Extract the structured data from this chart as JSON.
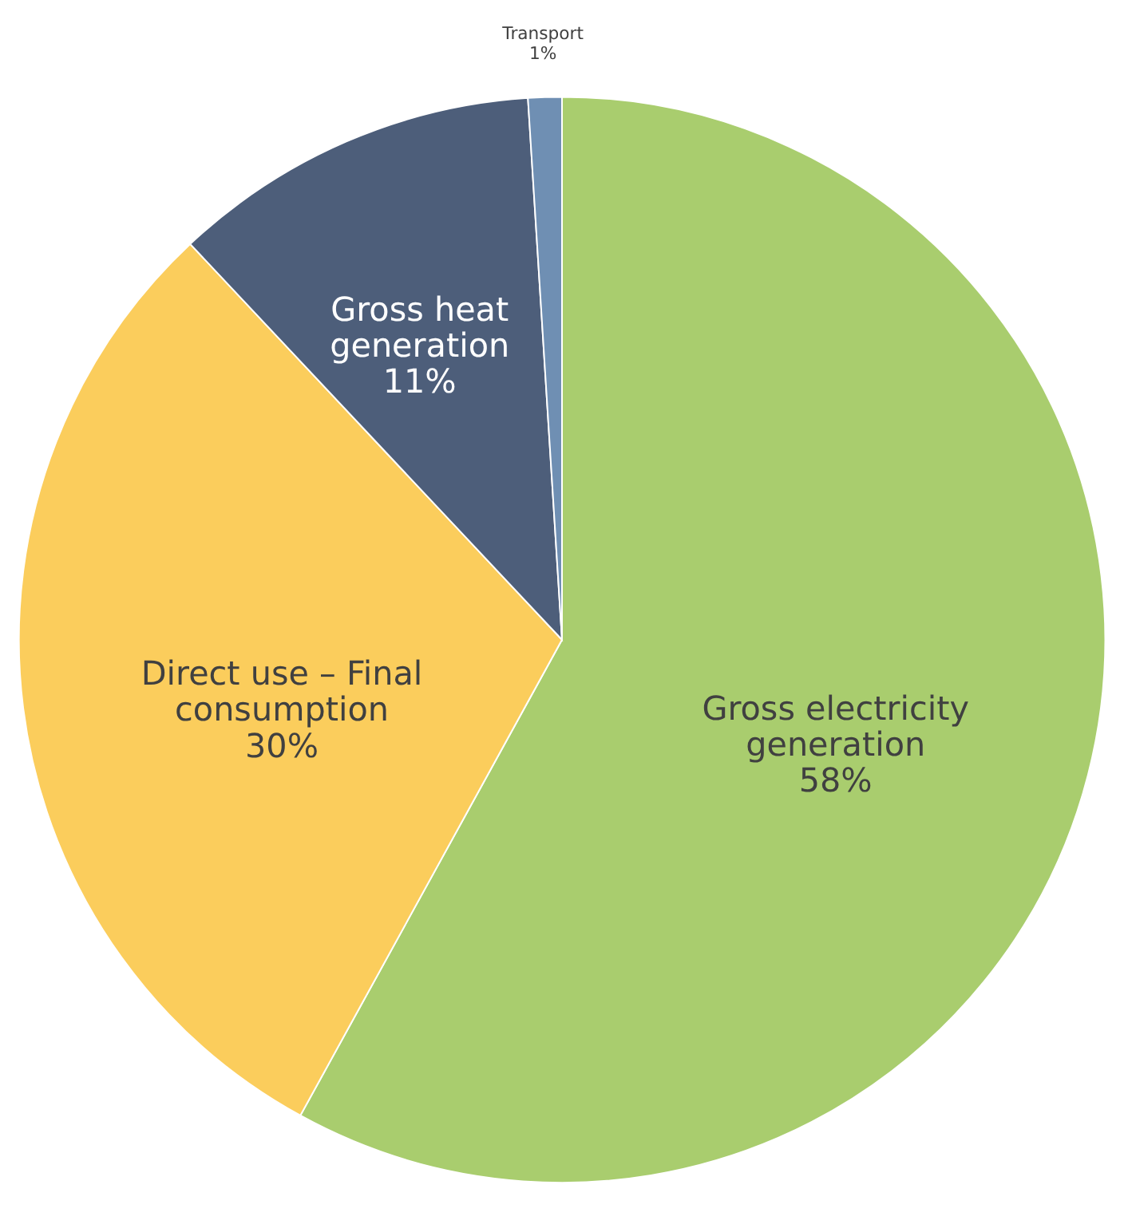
{
  "chart_data": {
    "type": "pie",
    "categories": [
      "Gross electricity generation",
      "Direct use – Final consumption",
      "Gross heat generation",
      "Transport"
    ],
    "values": [
      58,
      30,
      11,
      1
    ],
    "colors": [
      "#a9cd6e",
      "#fbcd5c",
      "#4d5e7a",
      "#6f8fb3"
    ],
    "value_labels": [
      "58%",
      "30%",
      "11%",
      "1%"
    ],
    "legend": false
  }
}
